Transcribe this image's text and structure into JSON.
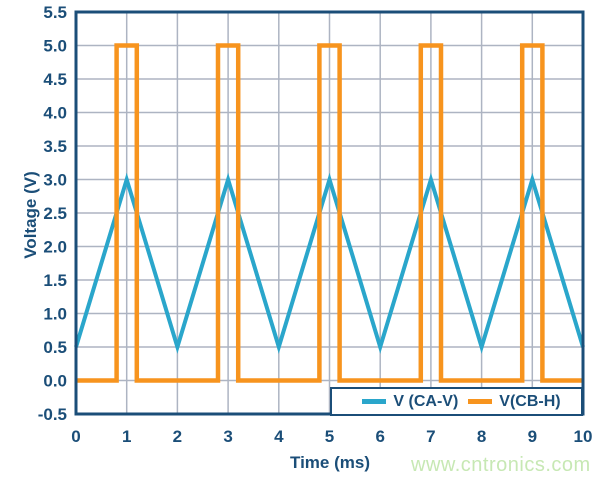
{
  "chart_data": {
    "type": "line",
    "title": "",
    "xlabel": "Time (ms)",
    "ylabel": "Voltage (V)",
    "xlim": [
      0,
      10
    ],
    "ylim": [
      -0.5,
      5.5
    ],
    "grid": true,
    "legend_position": "inside-bottom-right",
    "x_ticks": [
      0,
      1,
      2,
      3,
      4,
      5,
      6,
      7,
      8,
      9,
      10
    ],
    "x_tick_labels": [
      "0",
      "1",
      "2",
      "3",
      "4",
      "5",
      "6",
      "7",
      "8",
      "9",
      "10"
    ],
    "y_ticks": [
      -0.5,
      0.0,
      0.5,
      1.0,
      1.5,
      2.0,
      2.5,
      3.0,
      3.5,
      4.0,
      4.5,
      5.0,
      5.5
    ],
    "y_tick_labels": [
      "-0.5",
      "0.0",
      "0.5",
      "1.0",
      "1.5",
      "2.0",
      "2.5",
      "3.0",
      "3.5",
      "4.0",
      "4.5",
      "5.0",
      "5.5"
    ],
    "series": [
      {
        "name": "V (CA-V)",
        "color": "#2aa6cb",
        "points": [
          [
            0,
            0.5
          ],
          [
            1,
            3.0
          ],
          [
            2,
            0.5
          ],
          [
            3,
            3.0
          ],
          [
            4,
            0.5
          ],
          [
            5,
            3.0
          ],
          [
            6,
            0.5
          ],
          [
            7,
            3.0
          ],
          [
            8,
            0.5
          ],
          [
            9,
            3.0
          ],
          [
            10,
            0.5
          ]
        ]
      },
      {
        "name": "V(CB-H)",
        "color": "#f7941e",
        "points": [
          [
            0,
            0
          ],
          [
            0.8,
            0
          ],
          [
            0.8,
            5
          ],
          [
            1.2,
            5
          ],
          [
            1.2,
            0
          ],
          [
            2.8,
            0
          ],
          [
            2.8,
            5
          ],
          [
            3.2,
            5
          ],
          [
            3.2,
            0
          ],
          [
            4.8,
            0
          ],
          [
            4.8,
            5
          ],
          [
            5.2,
            5
          ],
          [
            5.2,
            0
          ],
          [
            6.8,
            0
          ],
          [
            6.8,
            5
          ],
          [
            7.2,
            5
          ],
          [
            7.2,
            0
          ],
          [
            8.8,
            0
          ],
          [
            8.8,
            5
          ],
          [
            9.2,
            5
          ],
          [
            9.2,
            0
          ],
          [
            10,
            0
          ]
        ]
      }
    ],
    "colors": {
      "axis_text": "#1b4e78",
      "plot_border": "#1b4e78",
      "gridline": "#adb4c2",
      "background": "#ffffff"
    }
  },
  "legend": {
    "border_color": "#1b4e78"
  },
  "watermark": {
    "text": "www.cntronics.com",
    "color": "#c7e8b4"
  }
}
